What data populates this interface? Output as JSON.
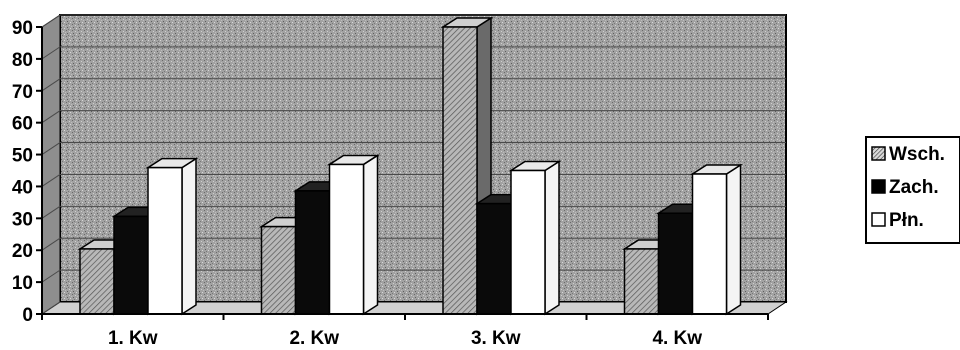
{
  "chart_data": {
    "type": "bar",
    "style": "3d-clustered-column",
    "categories": [
      "1. Kw",
      "2. Kw",
      "3. Kw",
      "4. Kw"
    ],
    "series": [
      {
        "name": "Wsch.",
        "values": [
          20.4,
          27.4,
          90,
          20.4
        ],
        "fill": "hatched-gray"
      },
      {
        "name": "Zach.",
        "values": [
          30.6,
          38.6,
          34.6,
          31.6
        ],
        "fill": "solid-black"
      },
      {
        "name": "Płn.",
        "values": [
          45.9,
          46.9,
          45,
          43.9
        ],
        "fill": "white"
      }
    ],
    "y_ticks": [
      "0",
      "10",
      "20",
      "30",
      "40",
      "50",
      "60",
      "70",
      "80",
      "90"
    ],
    "ylim": [
      0,
      90
    ],
    "grid": true,
    "legend_position": "right",
    "colors": {
      "plot_background": "#9a9a9a",
      "gridline": "#4a4a4a",
      "bar_dark": "#0a0a0a",
      "bar_light": "#ffffff",
      "bar_hatched": "#8c8c8c"
    }
  }
}
